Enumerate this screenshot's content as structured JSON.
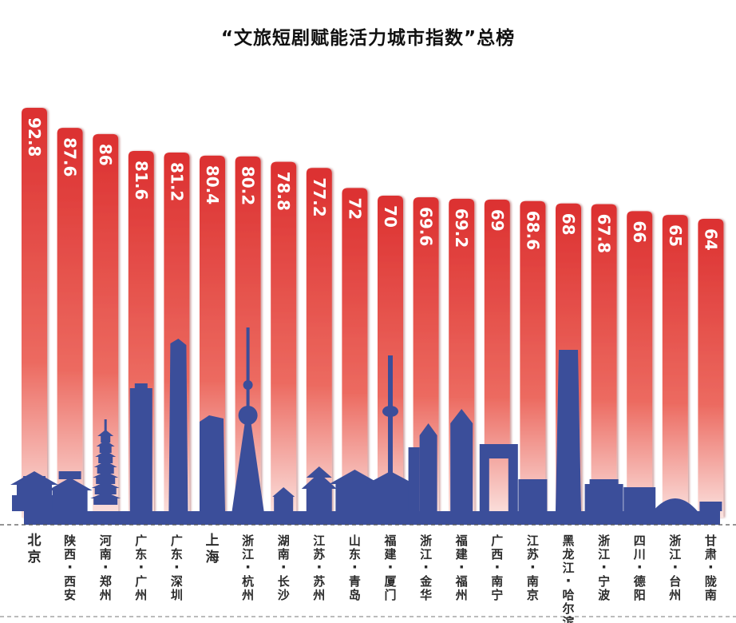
{
  "title": "“文旅短剧赋能活力城市指数”总榜",
  "colors": {
    "bar_top": "#dc3030",
    "bar_mid": "#ec6a60",
    "bar_bottom": "#fbe3e0",
    "skyline": "#3b4e9a",
    "label_text": "#2b2b2b",
    "value_text": "#ffffff"
  },
  "chart_data": {
    "type": "bar",
    "title": "“文旅短剧赋能活力城市指数”总榜",
    "xlabel": "",
    "ylabel": "",
    "categories": [
      "北京",
      "陕西·西安",
      "河南·郑州",
      "广东·广州",
      "广东·深圳",
      "上海",
      "浙江·杭州",
      "湖南·长沙",
      "江苏·苏州",
      "山东·青岛",
      "福建·厦门",
      "浙江·金华",
      "福建·福州",
      "广西·南宁",
      "江苏·南京",
      "黑龙江·哈尔滨",
      "浙江·宁波",
      "四川·德阳",
      "浙江·台州",
      "甘肃·陇南"
    ],
    "values": [
      92.8,
      87.6,
      86,
      81.6,
      81.2,
      80.4,
      80.2,
      78.8,
      77.2,
      72,
      70,
      69.6,
      69.2,
      69,
      68.6,
      68,
      67.8,
      66,
      65,
      64
    ],
    "value_labels": [
      "92.8",
      "87.6",
      "86",
      "81.6",
      "81.2",
      "80.4",
      "80.2",
      "78.8",
      "77.2",
      "72",
      "70",
      "69.6",
      "69.2",
      "69",
      "68.6",
      "68",
      "67.8",
      "66",
      "65",
      "64"
    ],
    "ylim": [
      0,
      92.8
    ],
    "grid": false,
    "legend": "none"
  },
  "skyline": {
    "landmark_icons": [
      "beijing-gate-icon",
      "xian-drum-tower-icon",
      "zhengzhou-pagoda-icon",
      "guangzhou-tower-icon",
      "shenzhen-pingan-tower-icon",
      "shanghai-tower-icon",
      "oriental-pearl-tower-icon",
      "changsha-building-icon",
      "suzhou-temple-icon",
      "qingdao-pavilion-icon",
      "xiamen-tower-icon",
      "jinhua-buildings-icon",
      "fuzhou-buildings-icon",
      "nanning-cctv-like-icon",
      "nanjing-tower-icon",
      "harbin-building-icon",
      "ningbo-building-icon",
      "deyang-building-icon",
      "taizhou-stadium-icon",
      "longnan-building-icon"
    ]
  }
}
